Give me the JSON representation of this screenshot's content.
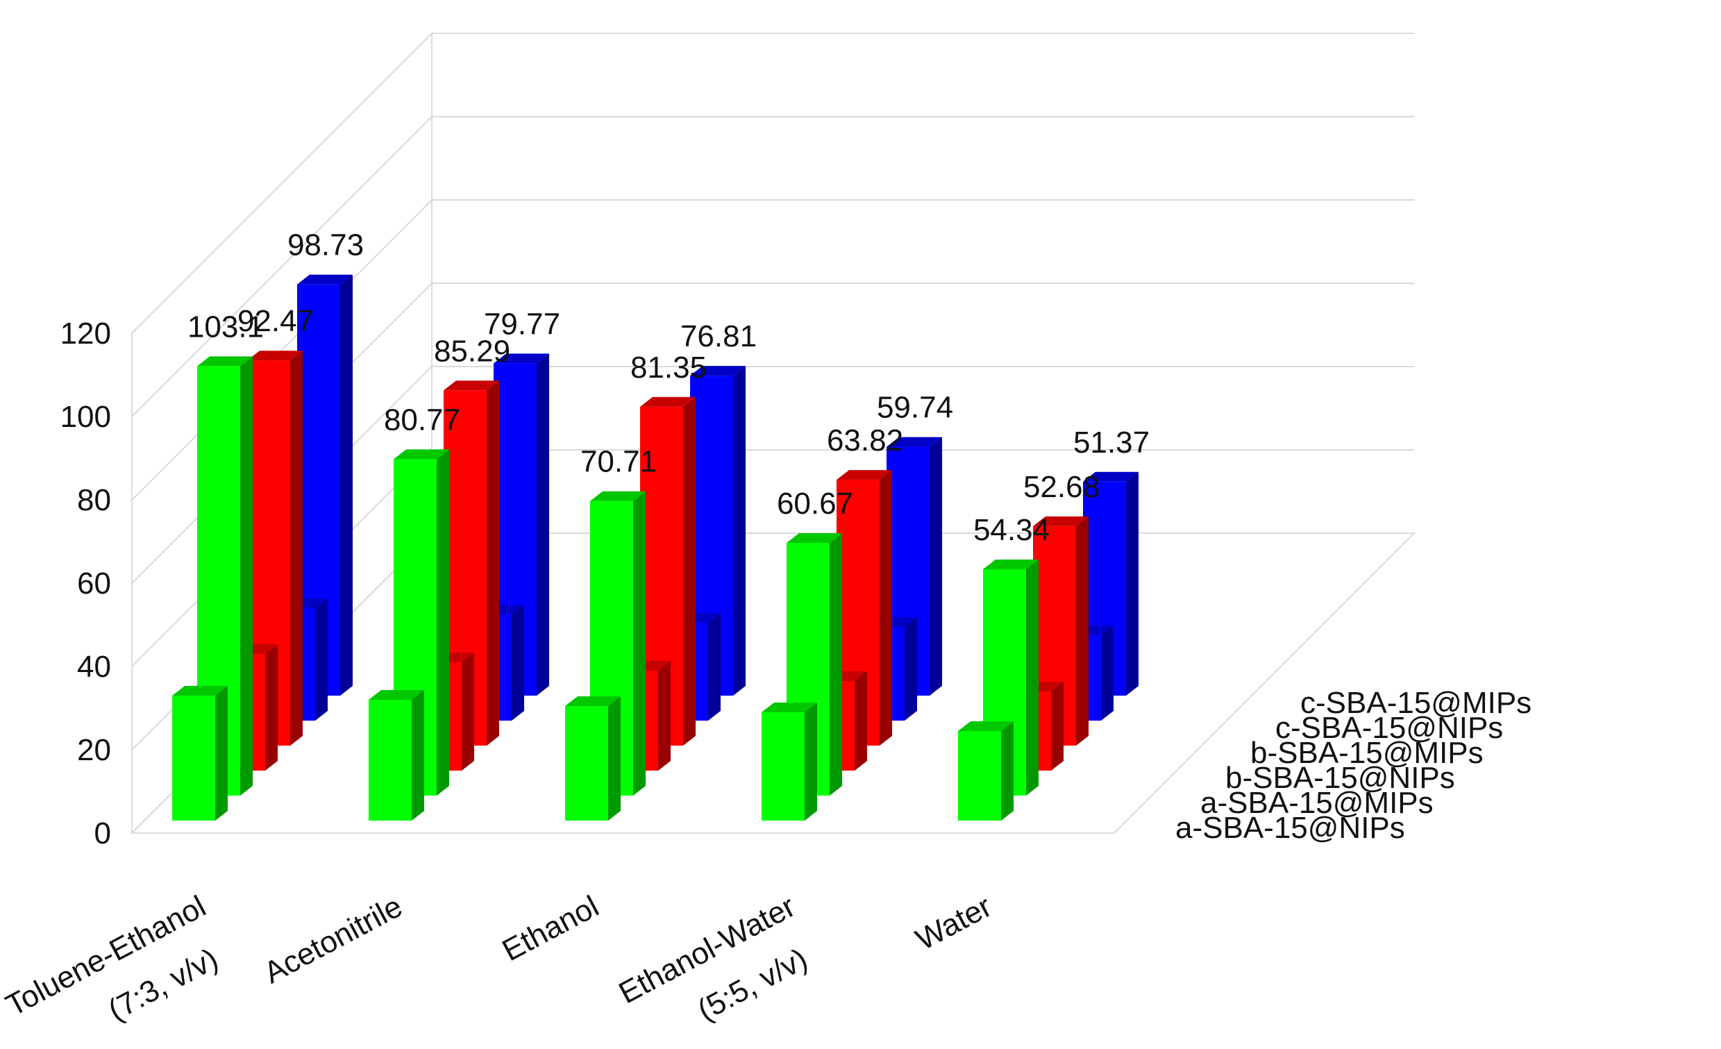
{
  "chart_data": {
    "type": "bar",
    "title": "",
    "xlabel": "",
    "ylabel": "",
    "ylim": [
      0,
      120
    ],
    "yticks": [
      0,
      20,
      40,
      60,
      80,
      100,
      120
    ],
    "grid": true,
    "categories": [
      [
        "Toluene-Ethanol",
        "(7:3, v/v)"
      ],
      [
        "Acetonitrile"
      ],
      [
        "Ethanol"
      ],
      [
        "Ethanol-Water",
        "(5:5, v/v)"
      ],
      [
        "Water"
      ]
    ],
    "series": [
      {
        "name": "a-SBA-15@NIPs",
        "color": "#00ff00",
        "values": [
          30,
          29,
          27.5,
          26,
          21.5
        ],
        "labels": [
          null,
          null,
          null,
          null,
          null
        ]
      },
      {
        "name": "a-SBA-15@MIPs",
        "color": "#00ff00",
        "values": [
          103.1,
          80.77,
          70.71,
          60.67,
          54.34
        ],
        "labels": [
          "103.1",
          "80.77",
          "70.71",
          "60.67",
          "54.34"
        ]
      },
      {
        "name": "b-SBA-15@NIPs",
        "color": "#ff0000",
        "values": [
          28,
          26,
          24,
          21.5,
          19
        ],
        "labels": [
          null,
          null,
          null,
          null,
          null
        ]
      },
      {
        "name": "b-SBA-15@MIPs",
        "color": "#ff0000",
        "values": [
          92.47,
          85.29,
          81.35,
          63.82,
          52.68
        ],
        "labels": [
          "92.47",
          "85.29",
          "81.35",
          "63.82",
          "52.68"
        ]
      },
      {
        "name": "c-SBA-15@NIPs",
        "color": "#0000ff",
        "values": [
          27,
          25.5,
          23.5,
          22.5,
          20.5
        ],
        "labels": [
          null,
          null,
          null,
          null,
          null
        ]
      },
      {
        "name": "c-SBA-15@MIPs",
        "color": "#0000ff",
        "values": [
          98.73,
          79.77,
          76.81,
          59.74,
          51.37
        ],
        "labels": [
          "98.73",
          "79.77",
          "76.81",
          "59.74",
          "51.37"
        ]
      }
    ]
  }
}
